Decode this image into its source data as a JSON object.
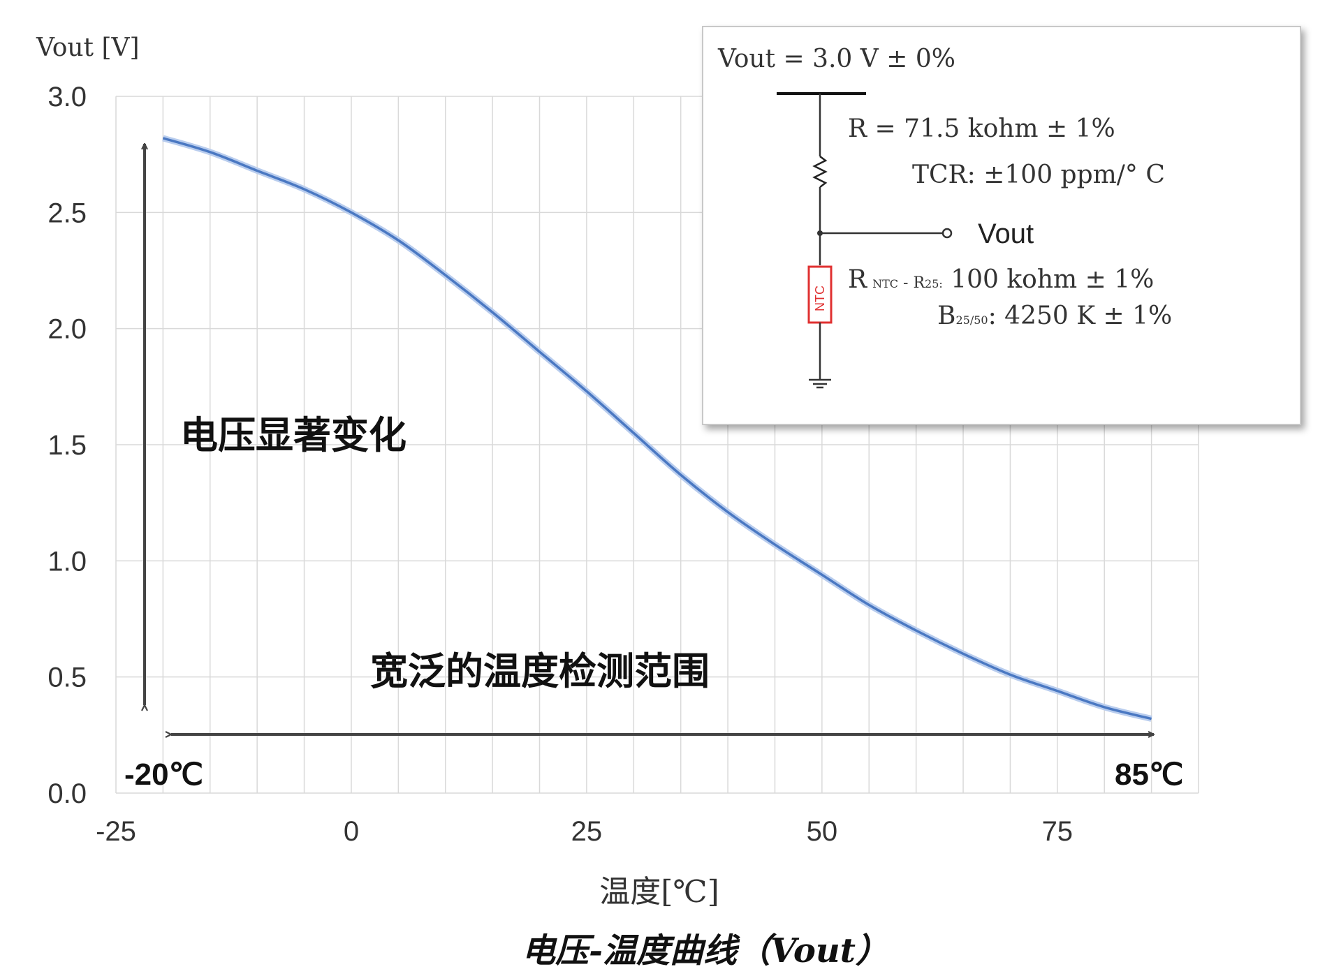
{
  "chart_data": {
    "type": "line",
    "title": "电压-温度曲线（Vout）",
    "xlabel": "温度[℃]",
    "ylabel": "Vout [V]",
    "xlim": [
      -25,
      90
    ],
    "ylim": [
      0,
      3.0
    ],
    "x_ticks": [
      "-25",
      "0",
      "25",
      "50",
      "75"
    ],
    "y_ticks": [
      "0.0",
      "0.5",
      "1.0",
      "1.5",
      "2.0",
      "2.5",
      "3.0"
    ],
    "grid": true,
    "series": [
      {
        "x": [
          -20,
          -15,
          -10,
          -5,
          0,
          5,
          10,
          15,
          20,
          25,
          30,
          35,
          40,
          45,
          50,
          55,
          60,
          65,
          70,
          75,
          80,
          85
        ],
        "y": [
          2.82,
          2.76,
          2.68,
          2.6,
          2.5,
          2.38,
          2.23,
          2.07,
          1.9,
          1.73,
          1.55,
          1.37,
          1.21,
          1.07,
          0.94,
          0.81,
          0.7,
          0.6,
          0.51,
          0.44,
          0.37,
          0.32
        ]
      }
    ],
    "annotations": {
      "vertical": "电压显著变化",
      "horizontal": "宽泛的温度检测范围",
      "left_end": "-20℃",
      "right_end": "85℃"
    },
    "inset": {
      "vout_supply": "Vout = 3.0 V ± 0%",
      "r_value": "R = 71.5 kohm ± 1%",
      "tcr": "TCR: ±100 ppm/° C",
      "out_label": "Vout",
      "ntc_prefix": "R",
      "ntc_sub": "NTC",
      "ntc_dash": " - R",
      "ntc_sub25": "25:",
      "ntc_value": " 100 kohm ± 1%",
      "b_prefix": "B",
      "b_sub": "25/50",
      "b_value": ": 4250 K ± 1%",
      "ntc_tag": "NTC"
    },
    "colors": {
      "line": "#4a78c2",
      "grid": "#d9d9d9",
      "ntc": "#e03030"
    }
  }
}
